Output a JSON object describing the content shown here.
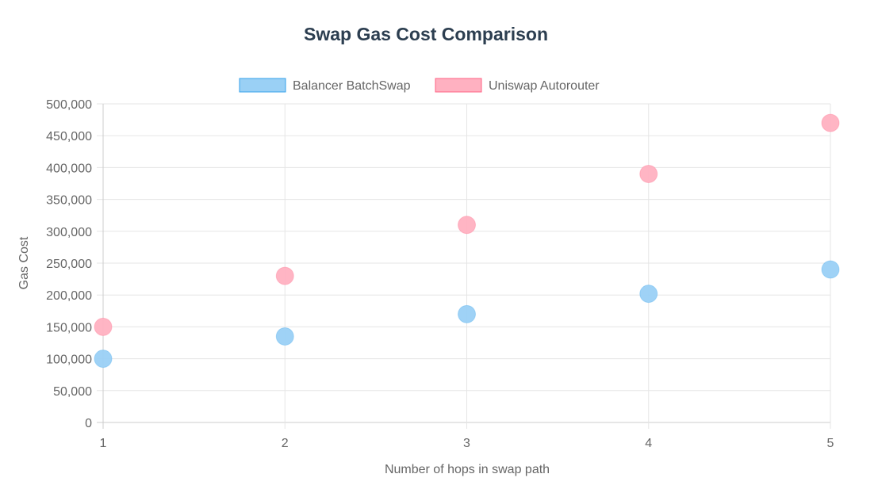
{
  "chart_data": {
    "type": "scatter",
    "title": "Swap Gas Cost Comparison",
    "xlabel": "Number of hops in swap path",
    "ylabel": "Gas Cost",
    "xlim": [
      1,
      5
    ],
    "ylim": [
      0,
      500000
    ],
    "x_ticks": [
      "1",
      "2",
      "3",
      "4",
      "5"
    ],
    "y_ticks": [
      "0",
      "50,000",
      "100,000",
      "150,000",
      "200,000",
      "250,000",
      "300,000",
      "350,000",
      "400,000",
      "450,000",
      "500,000"
    ],
    "grid": true,
    "legend_position": "top-center",
    "series": [
      {
        "name": "Balancer BatchSwap",
        "color": "#9ad0f5",
        "border": "#36a2eb",
        "points": [
          [
            1,
            100000
          ],
          [
            2,
            135000
          ],
          [
            3,
            170000
          ],
          [
            4,
            202000
          ],
          [
            5,
            240000
          ]
        ]
      },
      {
        "name": "Uniswap Autorouter",
        "color": "#ffb1c1",
        "border": "#ff6384",
        "points": [
          [
            1,
            150000
          ],
          [
            2,
            230000
          ],
          [
            3,
            310000
          ],
          [
            4,
            390000
          ],
          [
            5,
            470000
          ]
        ]
      }
    ]
  }
}
